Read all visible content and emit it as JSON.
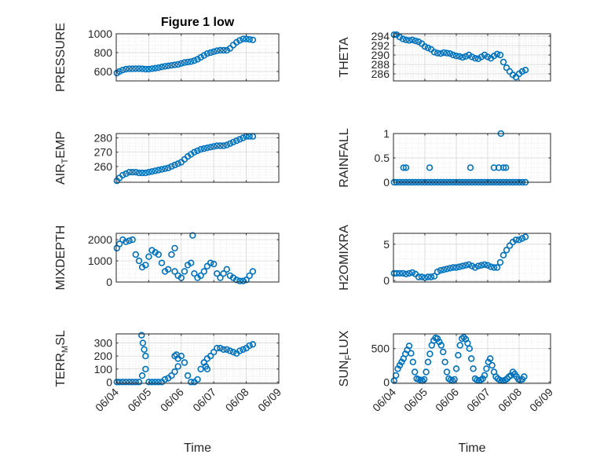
{
  "chart_data": [
    {
      "type": "scatter",
      "title": "Figure 1 low",
      "ylabel": "PRESSURE",
      "xlabel": "",
      "xlim": [
        0,
        5
      ],
      "xticks": [
        0,
        1,
        2,
        3,
        4,
        5
      ],
      "xticklabels": [
        "06/04",
        "06/05",
        "06/06",
        "06/07",
        "06/08",
        "06/09"
      ],
      "ylim": [
        500,
        1000
      ],
      "yticks": [
        600,
        800,
        1000
      ],
      "yticklabels": [
        "600",
        "800",
        "1000"
      ],
      "grid": true,
      "minor_grid": true,
      "series": [
        {
          "color": "#0072BD",
          "marker": "circle",
          "x": [
            0.02,
            0.1,
            0.2,
            0.3,
            0.4,
            0.5,
            0.6,
            0.7,
            0.8,
            0.9,
            1.0,
            1.1,
            1.2,
            1.3,
            1.4,
            1.5,
            1.6,
            1.7,
            1.8,
            1.9,
            2.0,
            2.1,
            2.2,
            2.3,
            2.4,
            2.5,
            2.6,
            2.7,
            2.8,
            2.9,
            3.0,
            3.1,
            3.2,
            3.3,
            3.4,
            3.5,
            3.6,
            3.7,
            3.8,
            3.9,
            4.0,
            4.1,
            4.2
          ],
          "y": [
            583,
            600,
            615,
            625,
            628,
            628,
            630,
            630,
            628,
            625,
            625,
            630,
            635,
            640,
            648,
            655,
            660,
            665,
            670,
            675,
            685,
            695,
            700,
            705,
            715,
            730,
            750,
            770,
            790,
            800,
            810,
            820,
            825,
            825,
            825,
            845,
            880,
            910,
            930,
            945,
            945,
            940,
            935
          ]
        }
      ]
    },
    {
      "type": "scatter",
      "ylabel": "THETA",
      "xlabel": "",
      "xlim": [
        0,
        5
      ],
      "xticks": [
        0,
        1,
        2,
        3,
        4,
        5
      ],
      "xticklabels": [
        "06/04",
        "06/05",
        "06/06",
        "06/07",
        "06/08",
        "06/09"
      ],
      "ylim": [
        284.5,
        294.5
      ],
      "yticks": [
        286,
        288,
        290,
        292,
        294
      ],
      "yticklabels": [
        "286",
        "288",
        "290",
        "292",
        "294"
      ],
      "grid": true,
      "minor_grid": true,
      "series": [
        {
          "color": "#0072BD",
          "marker": "circle",
          "x": [
            0.02,
            0.1,
            0.2,
            0.3,
            0.4,
            0.5,
            0.6,
            0.7,
            0.8,
            0.9,
            1.0,
            1.1,
            1.2,
            1.3,
            1.4,
            1.5,
            1.6,
            1.7,
            1.8,
            1.9,
            2.0,
            2.1,
            2.2,
            2.3,
            2.4,
            2.5,
            2.6,
            2.7,
            2.8,
            2.9,
            3.0,
            3.1,
            3.2,
            3.3,
            3.4,
            3.5,
            3.6,
            3.7,
            3.8,
            3.9,
            4.0,
            4.1,
            4.2
          ],
          "y": [
            294.3,
            294.3,
            293.8,
            293.4,
            293.2,
            293.1,
            293.2,
            293.0,
            292.8,
            292.4,
            291.8,
            291.5,
            291.2,
            290.6,
            290.4,
            290.3,
            290.5,
            290.4,
            290.3,
            290.0,
            289.8,
            289.7,
            289.5,
            289.7,
            290.0,
            289.6,
            289.3,
            289.2,
            289.6,
            290.0,
            289.6,
            289.3,
            289.8,
            290.2,
            290.0,
            288.5,
            287.3,
            286.5,
            285.8,
            285.3,
            286.0,
            286.5,
            286.8
          ]
        }
      ]
    },
    {
      "type": "scatter",
      "ylabel": "AIR_TEMP",
      "ylabel_parts": [
        "AIR",
        "T",
        "EMP"
      ],
      "xlabel": "",
      "xlim": [
        0,
        5
      ],
      "xticks": [
        0,
        1,
        2,
        3,
        4,
        5
      ],
      "xticklabels": [
        "06/04",
        "06/05",
        "06/06",
        "06/07",
        "06/08",
        "06/09"
      ],
      "ylim": [
        249,
        283
      ],
      "yticks": [
        260,
        270,
        280
      ],
      "yticklabels": [
        "260",
        "270",
        "280"
      ],
      "grid": true,
      "minor_grid": true,
      "series": [
        {
          "color": "#0072BD",
          "marker": "circle",
          "x": [
            0.02,
            0.1,
            0.2,
            0.3,
            0.4,
            0.5,
            0.6,
            0.7,
            0.8,
            0.9,
            1.0,
            1.1,
            1.2,
            1.3,
            1.4,
            1.5,
            1.6,
            1.7,
            1.8,
            1.9,
            2.0,
            2.1,
            2.2,
            2.3,
            2.4,
            2.5,
            2.6,
            2.7,
            2.8,
            2.9,
            3.0,
            3.1,
            3.2,
            3.3,
            3.4,
            3.5,
            3.6,
            3.7,
            3.8,
            3.9,
            4.0,
            4.1,
            4.2
          ],
          "y": [
            250,
            252,
            254,
            255,
            256,
            256,
            256,
            255.5,
            255.5,
            255.5,
            256,
            256.5,
            257,
            257.5,
            258,
            258.5,
            259,
            260,
            261,
            262,
            263,
            265,
            267,
            268.5,
            270,
            271,
            272,
            272.5,
            273,
            273.5,
            274,
            274.5,
            274.5,
            274.5,
            275,
            276,
            277,
            278,
            279,
            280,
            281,
            281,
            281
          ]
        }
      ]
    },
    {
      "type": "scatter",
      "ylabel": "RAINFALL",
      "xlabel": "",
      "xlim": [
        0,
        5
      ],
      "xticks": [
        0,
        1,
        2,
        3,
        4,
        5
      ],
      "xticklabels": [
        "06/04",
        "06/05",
        "06/06",
        "06/07",
        "06/08",
        "06/09"
      ],
      "ylim": [
        0,
        1
      ],
      "yticks": [
        0,
        0.5,
        1
      ],
      "yticklabels": [
        "0",
        "0.5",
        "1"
      ],
      "grid": true,
      "minor_grid": true,
      "series": [
        {
          "color": "#0072BD",
          "marker": "circle",
          "x": [
            0.02,
            0.1,
            0.2,
            0.3,
            0.4,
            0.5,
            0.6,
            0.7,
            0.8,
            0.9,
            1.0,
            1.1,
            1.2,
            1.3,
            1.4,
            1.5,
            1.6,
            1.7,
            1.8,
            1.9,
            2.0,
            2.1,
            2.2,
            2.3,
            2.4,
            2.5,
            2.6,
            2.7,
            2.8,
            2.9,
            3.0,
            3.1,
            3.2,
            3.3,
            3.4,
            3.5,
            3.6,
            3.7,
            3.8,
            3.9,
            4.0,
            4.1,
            4.2,
            0.32,
            0.4,
            1.15,
            2.45,
            3.2,
            3.35,
            3.42,
            3.5,
            3.58
          ],
          "y": [
            0,
            0,
            0,
            0,
            0,
            0,
            0,
            0,
            0,
            0,
            0,
            0,
            0,
            0,
            0,
            0,
            0,
            0,
            0,
            0,
            0,
            0,
            0,
            0,
            0,
            0,
            0,
            0,
            0,
            0,
            0,
            0,
            0,
            0,
            0,
            0,
            0,
            0,
            0,
            0,
            0,
            0,
            0,
            0.3,
            0.3,
            0.3,
            0.3,
            0.3,
            0.3,
            1.0,
            0.3,
            0.3
          ]
        }
      ]
    },
    {
      "type": "scatter",
      "ylabel": "MIXDEPTH",
      "xlabel": "",
      "xlim": [
        0,
        5
      ],
      "xticks": [
        0,
        1,
        2,
        3,
        4,
        5
      ],
      "xticklabels": [
        "06/04",
        "06/05",
        "06/06",
        "06/07",
        "06/08",
        "06/09"
      ],
      "ylim": [
        0,
        2300
      ],
      "yticks": [
        0,
        1000,
        2000
      ],
      "yticklabels": [
        "0",
        "1000",
        "2000"
      ],
      "grid": true,
      "minor_grid": true,
      "series": [
        {
          "color": "#0072BD",
          "marker": "circle",
          "x": [
            0.02,
            0.1,
            0.2,
            0.3,
            0.4,
            0.5,
            0.6,
            0.7,
            0.8,
            0.9,
            1.0,
            1.1,
            1.2,
            1.3,
            1.4,
            1.5,
            1.6,
            1.7,
            1.8,
            1.9,
            2.0,
            2.1,
            2.2,
            2.3,
            2.4,
            2.5,
            2.6,
            2.7,
            2.8,
            2.9,
            3.0,
            3.1,
            3.2,
            3.3,
            3.4,
            3.5,
            3.6,
            3.7,
            3.8,
            3.9,
            4.0,
            4.1,
            4.2,
            1.8,
            2.35
          ],
          "y": [
            1600,
            1800,
            2000,
            1900,
            1950,
            2000,
            1300,
            1000,
            700,
            800,
            1200,
            1500,
            1400,
            1300,
            900,
            500,
            600,
            1300,
            500,
            300,
            200,
            500,
            800,
            900,
            400,
            200,
            300,
            500,
            750,
            900,
            850,
            400,
            200,
            400,
            600,
            300,
            200,
            100,
            50,
            50,
            100,
            300,
            500,
            1600,
            2200
          ]
        }
      ]
    },
    {
      "type": "scatter",
      "ylabel": "H2OMIXRA",
      "xlabel": "",
      "xlim": [
        0,
        5
      ],
      "xticks": [
        0,
        1,
        2,
        3,
        4,
        5
      ],
      "xticklabels": [
        "06/04",
        "06/05",
        "06/06",
        "06/07",
        "06/08",
        "06/09"
      ],
      "ylim": [
        -0.2,
        6.5
      ],
      "yticks": [
        0,
        5
      ],
      "yticklabels": [
        "0",
        "5"
      ],
      "grid": true,
      "minor_grid": true,
      "series": [
        {
          "color": "#0072BD",
          "marker": "circle",
          "x": [
            0.02,
            0.1,
            0.2,
            0.3,
            0.4,
            0.5,
            0.6,
            0.7,
            0.8,
            0.9,
            1.0,
            1.1,
            1.2,
            1.3,
            1.4,
            1.5,
            1.6,
            1.7,
            1.8,
            1.9,
            2.0,
            2.1,
            2.2,
            2.3,
            2.4,
            2.5,
            2.6,
            2.7,
            2.8,
            2.9,
            3.0,
            3.1,
            3.2,
            3.3,
            3.4,
            3.5,
            3.6,
            3.7,
            3.8,
            3.9,
            4.0,
            4.1,
            4.2
          ],
          "y": [
            1.0,
            1.0,
            1.0,
            1.0,
            0.9,
            1.0,
            1.1,
            0.9,
            0.5,
            0.5,
            0.4,
            0.5,
            0.5,
            0.6,
            1.2,
            1.4,
            1.5,
            1.6,
            1.7,
            1.8,
            1.8,
            1.9,
            2.0,
            2.1,
            2.2,
            2.0,
            1.8,
            2.0,
            2.1,
            2.2,
            2.1,
            1.9,
            1.8,
            1.8,
            2.5,
            3.5,
            4.2,
            4.8,
            5.3,
            5.6,
            5.6,
            5.8,
            6.0
          ]
        }
      ]
    },
    {
      "type": "scatter",
      "ylabel": "TERR_MSL",
      "ylabel_parts": [
        "TERR",
        "M",
        "SL"
      ],
      "xlabel": "Time",
      "xlim": [
        0,
        5
      ],
      "xticks": [
        0,
        1,
        2,
        3,
        4,
        5
      ],
      "xticklabels": [
        "06/04",
        "06/05",
        "06/06",
        "06/07",
        "06/08",
        "06/09"
      ],
      "ylim": [
        -10,
        370
      ],
      "yticks": [
        0,
        100,
        200,
        300
      ],
      "yticklabels": [
        "0",
        "100",
        "200",
        "300"
      ],
      "grid": true,
      "minor_grid": true,
      "series": [
        {
          "color": "#0072BD",
          "marker": "circle",
          "x": [
            0.02,
            0.1,
            0.2,
            0.3,
            0.4,
            0.5,
            0.6,
            0.7,
            0.8,
            0.9,
            1.0,
            1.1,
            1.2,
            1.3,
            1.4,
            1.5,
            1.6,
            1.7,
            1.8,
            1.9,
            2.0,
            2.1,
            2.2,
            2.3,
            2.4,
            2.5,
            2.6,
            2.7,
            2.8,
            2.9,
            3.0,
            3.1,
            3.2,
            3.3,
            3.4,
            3.5,
            3.6,
            3.7,
            3.8,
            3.9,
            4.0,
            4.1,
            4.2,
            0.78,
            0.82,
            0.86,
            0.9,
            1.8,
            1.85,
            1.9,
            2.7,
            2.75,
            2.8
          ],
          "y": [
            0,
            0,
            0,
            0,
            0,
            0,
            0,
            0,
            50,
            100,
            0,
            0,
            0,
            0,
            0,
            20,
            30,
            50,
            80,
            120,
            200,
            150,
            50,
            0,
            0,
            20,
            100,
            150,
            180,
            200,
            230,
            260,
            260,
            250,
            250,
            240,
            230,
            220,
            240,
            250,
            260,
            280,
            290,
            360,
            300,
            250,
            200,
            200,
            210,
            180,
            150,
            120,
            100
          ]
        }
      ]
    },
    {
      "type": "scatter",
      "ylabel": "SUN_FLUX",
      "ylabel_parts": [
        "SUN",
        "F",
        "LUX"
      ],
      "xlabel": "Time",
      "xlim": [
        0,
        5
      ],
      "xticks": [
        0,
        1,
        2,
        3,
        4,
        5
      ],
      "xticklabels": [
        "06/04",
        "06/05",
        "06/06",
        "06/07",
        "06/08",
        "06/09"
      ],
      "ylim": [
        -20,
        720
      ],
      "yticks": [
        0,
        500
      ],
      "yticklabels": [
        "0",
        "500"
      ],
      "grid": true,
      "minor_grid": true,
      "series": [
        {
          "color": "#0072BD",
          "marker": "circle",
          "x": [
            0.02,
            0.08,
            0.14,
            0.2,
            0.26,
            0.32,
            0.38,
            0.44,
            0.5,
            0.56,
            0.62,
            0.68,
            0.74,
            0.8,
            0.86,
            0.92,
            0.98,
            1.04,
            1.1,
            1.16,
            1.22,
            1.28,
            1.34,
            1.4,
            1.46,
            1.52,
            1.58,
            1.64,
            1.7,
            1.76,
            1.82,
            1.88,
            1.94,
            2.0,
            2.06,
            2.12,
            2.18,
            2.24,
            2.3,
            2.36,
            2.42,
            2.48,
            2.54,
            2.6,
            2.66,
            2.72,
            2.78,
            2.84,
            2.9,
            2.96,
            3.02,
            3.08,
            3.14,
            3.2,
            3.26,
            3.32,
            3.38,
            3.44,
            3.5,
            3.56,
            3.62,
            3.68,
            3.74,
            3.8,
            3.86,
            3.92,
            3.98,
            4.04,
            4.1,
            4.16
          ],
          "y": [
            20,
            100,
            200,
            250,
            300,
            350,
            420,
            480,
            540,
            430,
            300,
            150,
            50,
            40,
            30,
            20,
            40,
            150,
            300,
            420,
            550,
            620,
            660,
            650,
            600,
            550,
            450,
            300,
            150,
            50,
            30,
            20,
            40,
            200,
            400,
            550,
            650,
            670,
            640,
            580,
            500,
            350,
            200,
            50,
            30,
            20,
            30,
            50,
            100,
            200,
            300,
            350,
            250,
            150,
            80,
            50,
            30,
            20,
            20,
            30,
            50,
            80,
            100,
            150,
            120,
            80,
            40,
            30,
            40,
            80
          ]
        }
      ]
    }
  ]
}
